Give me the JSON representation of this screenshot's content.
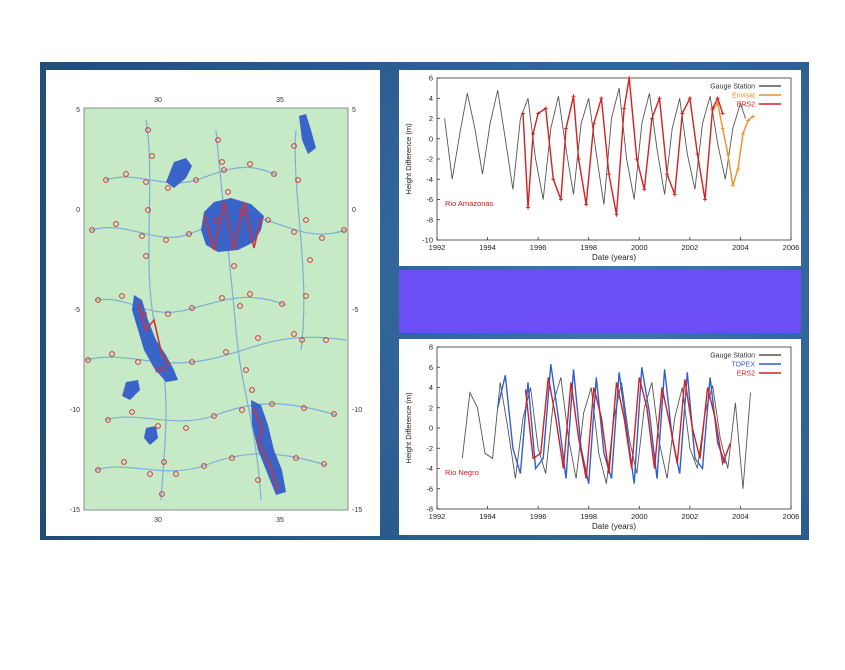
{
  "colors": {
    "background": "#2a5a8c",
    "purple_bar": "#6b4ff5",
    "map_land": "#c7eac6",
    "map_river": "#7ab0d8",
    "map_water": "#3a64c8",
    "map_track": "#d4323a",
    "gauge": "#555555",
    "envisat": "#e8922a",
    "ers2": "#d42020",
    "topex": "#2f5fd0"
  },
  "map": {
    "x_ticks": [
      "30",
      "35"
    ],
    "y_ticks": [
      "5",
      "0",
      "-5",
      "-10",
      "-15"
    ],
    "icons": [
      "altimeter-track-marker"
    ]
  },
  "chart_data": [
    {
      "type": "line",
      "annotation": "Rio Amazonas",
      "xlabel": "Date (years)",
      "ylabel": "Height Difference (m)",
      "xlim": [
        1992,
        2006
      ],
      "ylim": [
        -10,
        6
      ],
      "x_ticks": [
        "1992",
        "1994",
        "1996",
        "1998",
        "2000",
        "2002",
        "2004",
        "2006"
      ],
      "y_ticks": [
        "6",
        "4",
        "2",
        "0",
        "-2",
        "-4",
        "-6",
        "-8",
        "-10"
      ],
      "legend": "top-right",
      "grid": false,
      "series": [
        {
          "name": "Gauge Station",
          "color": "#555555",
          "x": [
            1992.3,
            1992.6,
            1992.9,
            1993.2,
            1993.5,
            1993.8,
            1994.1,
            1994.4,
            1994.7,
            1995.0,
            1995.3,
            1995.6,
            1995.9,
            1996.2,
            1996.5,
            1996.8,
            1997.1,
            1997.4,
            1997.7,
            1998.0,
            1998.3,
            1998.6,
            1998.9,
            1999.2,
            1999.5,
            1999.8,
            2000.1,
            2000.4,
            2000.7,
            2001.0,
            2001.3,
            2001.6,
            2001.9,
            2002.2,
            2002.5,
            2002.8,
            2003.1,
            2003.4,
            2003.7,
            2004.0,
            2004.2
          ],
          "values": [
            2.0,
            -4.0,
            0.5,
            4.5,
            1.0,
            -3.5,
            1.5,
            4.8,
            0.0,
            -5.0,
            2.0,
            4.0,
            -2.0,
            -6.0,
            1.0,
            4.2,
            -1.0,
            -5.5,
            1.5,
            4.0,
            -1.5,
            -6.5,
            2.0,
            5.0,
            -2.0,
            -6.0,
            1.5,
            4.5,
            -1.0,
            -5.5,
            1.0,
            4.0,
            -1.5,
            -5.0,
            1.5,
            4.2,
            -0.5,
            -4.0,
            1.0,
            3.5,
            2.0
          ]
        },
        {
          "name": "Envisat",
          "color": "#e8922a",
          "x": [
            2002.9,
            2003.1,
            2003.3,
            2003.5,
            2003.7,
            2003.9,
            2004.1,
            2004.3,
            2004.5
          ],
          "values": [
            2.8,
            3.5,
            1.0,
            -1.5,
            -4.6,
            -3.0,
            0.5,
            1.8,
            2.2
          ]
        },
        {
          "name": "ERS2",
          "color": "#d42020",
          "x": [
            1995.4,
            1995.6,
            1995.8,
            1996.0,
            1996.3,
            1996.6,
            1996.9,
            1997.1,
            1997.4,
            1997.6,
            1997.9,
            1998.2,
            1998.5,
            1998.8,
            1999.1,
            1999.4,
            1999.6,
            1999.9,
            2000.2,
            2000.5,
            2000.8,
            2001.1,
            2001.4,
            2001.7,
            2002.0,
            2002.3,
            2002.6,
            2002.9,
            2003.1,
            2003.3
          ],
          "values": [
            2.5,
            -6.8,
            0.5,
            2.5,
            3.0,
            -4.0,
            -6.0,
            1.0,
            4.2,
            -2.0,
            -6.5,
            1.5,
            4.0,
            -3.5,
            -7.5,
            3.0,
            6.0,
            -2.0,
            -5.0,
            2.0,
            4.0,
            -3.5,
            -5.5,
            2.5,
            4.0,
            -1.5,
            -6.0,
            3.0,
            4.0,
            2.5
          ]
        }
      ]
    },
    {
      "type": "line",
      "annotation": "Rio Negro",
      "xlabel": "Date (years)",
      "ylabel": "Height Difference (m)",
      "xlim": [
        1992,
        2006
      ],
      "ylim": [
        -8,
        8
      ],
      "x_ticks": [
        "1992",
        "1994",
        "1996",
        "1998",
        "2000",
        "2002",
        "2004",
        "2006"
      ],
      "y_ticks": [
        "8",
        "6",
        "4",
        "2",
        "0",
        "-2",
        "-4",
        "-6",
        "-8"
      ],
      "legend": "top-right",
      "grid": false,
      "series": [
        {
          "name": "Gauge Station",
          "color": "#555555",
          "x": [
            1993.0,
            1993.3,
            1993.6,
            1993.9,
            1994.2,
            1994.5,
            1994.8,
            1995.1,
            1995.4,
            1995.7,
            1996.0,
            1996.3,
            1996.6,
            1996.9,
            1997.2,
            1997.5,
            1997.8,
            1998.1,
            1998.4,
            1998.7,
            1999.0,
            1999.3,
            1999.6,
            1999.9,
            2000.2,
            2000.5,
            2000.8,
            2001.1,
            2001.4,
            2001.7,
            2002.0,
            2002.3,
            2002.6,
            2002.9,
            2003.2,
            2003.5,
            2003.8,
            2004.1,
            2004.4
          ],
          "values": [
            -3.0,
            3.5,
            2.0,
            -2.5,
            -3.0,
            4.5,
            0.0,
            -5.0,
            1.0,
            4.0,
            -2.0,
            -4.5,
            2.5,
            5.0,
            -1.0,
            -5.0,
            1.5,
            4.0,
            -2.5,
            -5.5,
            1.0,
            4.5,
            -1.0,
            -4.5,
            2.0,
            4.5,
            -1.5,
            -5.0,
            1.0,
            4.0,
            -2.0,
            -4.0,
            1.5,
            4.2,
            -1.0,
            -4.0,
            2.5,
            -6.0,
            3.5
          ]
        },
        {
          "name": "TOPEX",
          "color": "#2f5fd0",
          "x": [
            1994.4,
            1994.7,
            1995.0,
            1995.3,
            1995.6,
            1995.9,
            1996.2,
            1996.5,
            1996.8,
            1997.1,
            1997.4,
            1997.7,
            1998.0,
            1998.3,
            1998.6,
            1998.9,
            1999.2,
            1999.5,
            1999.8,
            2000.1,
            2000.4,
            2000.7,
            2001.0,
            2001.3,
            2001.6,
            2001.9,
            2002.2,
            2002.5,
            2002.8,
            2003.1,
            2003.4
          ],
          "values": [
            2.0,
            5.2,
            -2.0,
            -4.5,
            4.5,
            -4.0,
            -3.0,
            6.3,
            1.0,
            -5.0,
            5.8,
            -2.0,
            -5.5,
            5.0,
            -2.5,
            -5.0,
            5.5,
            0.0,
            -5.5,
            6.0,
            1.5,
            -5.0,
            5.8,
            -1.0,
            -4.5,
            5.5,
            -3.0,
            -4.0,
            5.0,
            -1.5,
            -3.5
          ]
        },
        {
          "name": "ERS2",
          "color": "#d42020",
          "x": [
            1995.5,
            1995.8,
            1996.1,
            1996.4,
            1996.7,
            1997.0,
            1997.3,
            1997.6,
            1997.9,
            1998.2,
            1998.5,
            1998.8,
            1999.1,
            1999.4,
            1999.7,
            2000.0,
            2000.3,
            2000.6,
            2000.9,
            2001.2,
            2001.5,
            2001.8,
            2002.1,
            2002.4,
            2002.7,
            2003.0,
            2003.3,
            2003.6
          ],
          "values": [
            3.8,
            -3.0,
            -2.5,
            5.0,
            1.0,
            -4.0,
            4.5,
            -1.0,
            -5.0,
            4.0,
            1.0,
            -4.5,
            4.5,
            1.0,
            -4.0,
            5.0,
            2.0,
            -4.0,
            4.0,
            0.5,
            -3.5,
            4.8,
            0.0,
            -3.0,
            4.0,
            1.0,
            -3.5,
            -1.5
          ]
        }
      ]
    }
  ]
}
